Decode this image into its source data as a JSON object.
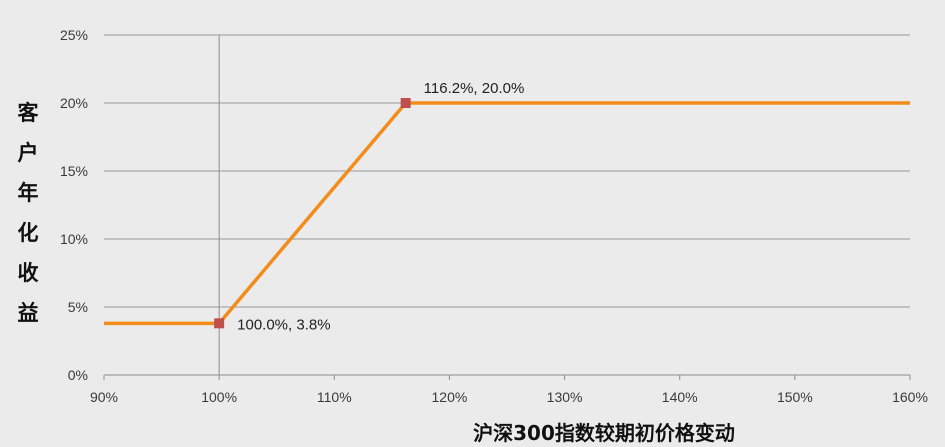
{
  "chart_data": {
    "type": "line",
    "title": "",
    "xlabel": "沪深300指数较期初价格变动",
    "ylabel": "客户年化收益",
    "xlim": [
      90,
      160
    ],
    "ylim": [
      0,
      25
    ],
    "x_ticks": [
      "90%",
      "100%",
      "110%",
      "120%",
      "130%",
      "140%",
      "150%",
      "160%"
    ],
    "y_ticks": [
      "0%",
      "5%",
      "10%",
      "15%",
      "20%",
      "25%"
    ],
    "grid": "horizontal",
    "reference_line_x": 100,
    "series": [
      {
        "color": "#f28c1a",
        "x": [
          90,
          100,
          116.2,
          160
        ],
        "y": [
          3.8,
          3.8,
          20.0,
          20.0
        ]
      }
    ],
    "markers": [
      {
        "x": 100,
        "y": 3.8,
        "label": "100.0%, 3.8%",
        "color": "#c0504d"
      },
      {
        "x": 116.2,
        "y": 20.0,
        "label": "116.2%, 20.0%",
        "color": "#c0504d"
      }
    ]
  }
}
